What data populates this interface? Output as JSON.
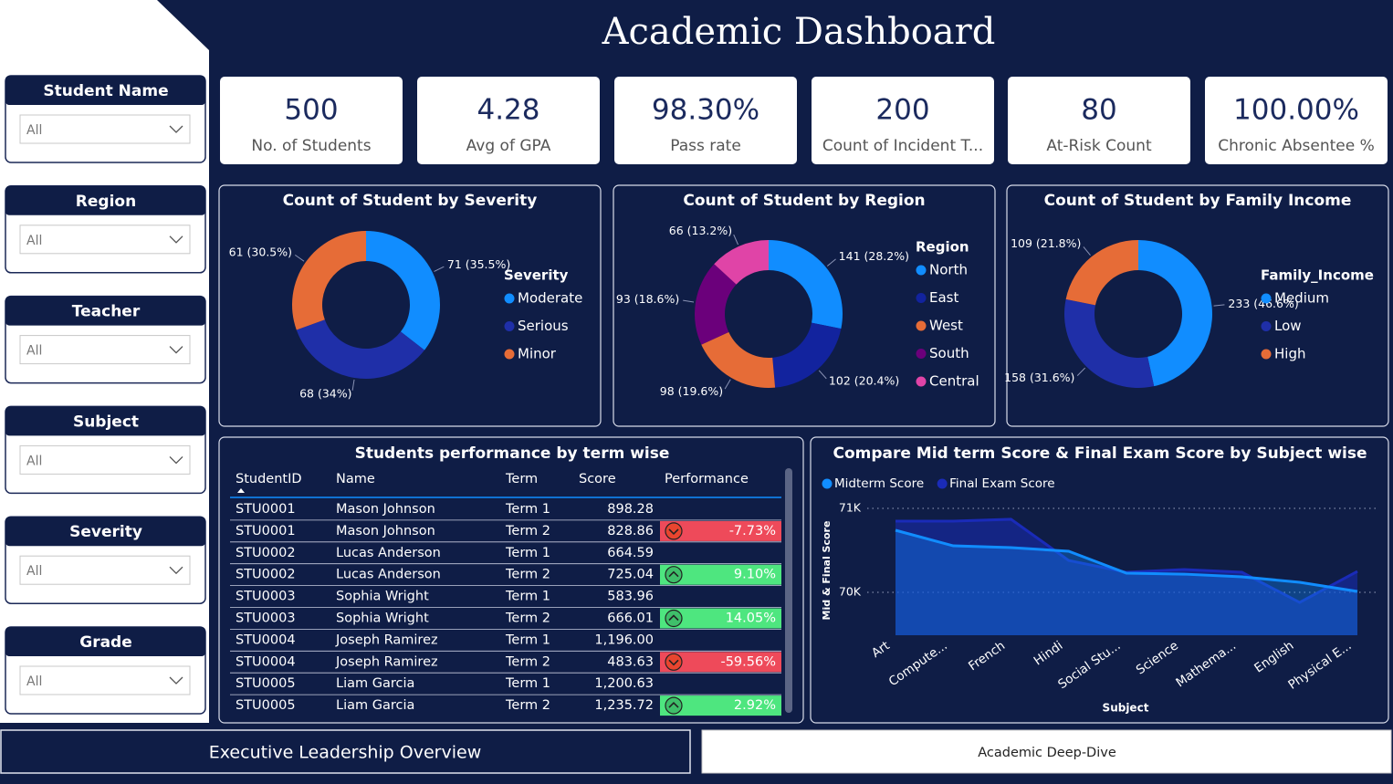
{
  "title": "Academic Dashboard",
  "filters": [
    {
      "label": "Student Name",
      "value": "All"
    },
    {
      "label": "Region",
      "value": "All"
    },
    {
      "label": "Teacher",
      "value": "All"
    },
    {
      "label": "Subject",
      "value": "All"
    },
    {
      "label": "Severity",
      "value": "All"
    },
    {
      "label": "Grade",
      "value": "All"
    }
  ],
  "kpis": [
    {
      "value": "500",
      "label": "No. of Students"
    },
    {
      "value": "4.28",
      "label": "Avg of GPA"
    },
    {
      "value": "98.30%",
      "label": "Pass rate"
    },
    {
      "value": "200",
      "label": "Count of Incident T..."
    },
    {
      "value": "80",
      "label": "At-Risk Count"
    },
    {
      "value": "100.00%",
      "label": "Chronic Absentee %"
    }
  ],
  "chart_data": [
    {
      "type": "donut",
      "title": "Count of Student by Severity",
      "legend_title": "Severity",
      "categories": [
        "Moderate",
        "Serious",
        "Minor"
      ],
      "values": [
        71,
        68,
        61
      ],
      "value_labels": [
        "71 (35.5%)",
        "68 (34%)",
        "61 (30.5%)"
      ],
      "colors": [
        "#118DFF",
        "#1F2FA8",
        "#E66C37"
      ]
    },
    {
      "type": "donut",
      "title": "Count of Student by Region",
      "legend_title": "Region",
      "categories": [
        "North",
        "East",
        "West",
        "South",
        "Central"
      ],
      "values": [
        141,
        102,
        98,
        93,
        66
      ],
      "value_labels": [
        "141 (28.2%)",
        "102 (20.4%)",
        "98 (19.6%)",
        "93 (18.6%)",
        "66 (13.2%)"
      ],
      "colors": [
        "#118DFF",
        "#12239E",
        "#E66C37",
        "#6B007B",
        "#E044A7"
      ]
    },
    {
      "type": "donut",
      "title": "Count of Student by Family Income",
      "legend_title": "Family_Income",
      "categories": [
        "Medium",
        "Low",
        "High"
      ],
      "values": [
        233,
        158,
        109
      ],
      "value_labels": [
        "233 (46.6%)",
        "158 (31.6%)",
        "109 (21.8%)"
      ],
      "colors": [
        "#118DFF",
        "#1F2FA8",
        "#E66C37"
      ]
    },
    {
      "type": "area",
      "title": "Compare Mid term Score & Final Exam Score by Subject wise",
      "x_label": "Subject",
      "y_label": "Mid & Final Score",
      "categories": [
        "Art",
        "Compute...",
        "French",
        "Hindi",
        "Social Stu...",
        "Science",
        "Mathema...",
        "English",
        "Physical E..."
      ],
      "series": [
        {
          "name": "Midterm Score",
          "color": "#118DFF",
          "values": [
            70739,
            70554,
            70533,
            70489,
            70228,
            70217,
            70185,
            70120,
            70011
          ]
        },
        {
          "name": "Final Exam Score",
          "color": "#1A2BB8",
          "values": [
            70848,
            70848,
            70870,
            70380,
            70239,
            70272,
            70239,
            69880,
            70250
          ]
        }
      ],
      "ylim": [
        69490,
        71130
      ],
      "yticks": [
        {
          "value": 70000,
          "label": "70K"
        },
        {
          "value": 71000,
          "label": "71K"
        }
      ],
      "grid": true
    }
  ],
  "table": {
    "title": "Students performance by term wise",
    "columns": [
      "StudentID",
      "Name",
      "Term",
      "Score",
      "Performance"
    ],
    "rows": [
      [
        "STU0001",
        "Mason Johnson",
        "Term 1",
        "898.28",
        null
      ],
      [
        "STU0001",
        "Mason Johnson",
        "Term 2",
        "828.86",
        "-7.73%"
      ],
      [
        "STU0002",
        "Lucas Anderson",
        "Term 1",
        "664.59",
        null
      ],
      [
        "STU0002",
        "Lucas Anderson",
        "Term 2",
        "725.04",
        "9.10%"
      ],
      [
        "STU0003",
        "Sophia Wright",
        "Term 1",
        "583.96",
        null
      ],
      [
        "STU0003",
        "Sophia Wright",
        "Term 2",
        "666.01",
        "14.05%"
      ],
      [
        "STU0004",
        "Joseph Ramirez",
        "Term 1",
        "1,196.00",
        null
      ],
      [
        "STU0004",
        "Joseph Ramirez",
        "Term 2",
        "483.63",
        "-59.56%"
      ],
      [
        "STU0005",
        "Liam Garcia",
        "Term 1",
        "1,200.63",
        null
      ],
      [
        "STU0005",
        "Liam Garcia",
        "Term 2",
        "1,235.72",
        "2.92%"
      ]
    ]
  },
  "nav": [
    "Executive Leadership Overview",
    "Academic Deep-Dive"
  ]
}
